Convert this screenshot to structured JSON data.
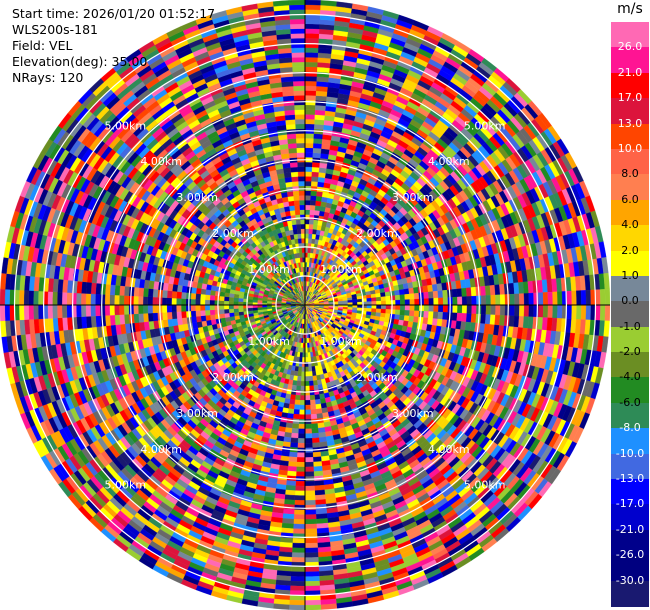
{
  "header": {
    "start_time": "Start time: 2026/01/20 01:52:17",
    "instrument": "WLS200s-181",
    "field": "Field: VEL",
    "elevation": "Elevation(deg): 35.00",
    "nrays": "NRays: 120"
  },
  "colorbar": {
    "unit": "m/s",
    "colors": [
      "#ff69b4",
      "#ff1493",
      "#ff0000",
      "#dc143c",
      "#ff4500",
      "#ff6347",
      "#ff7f50",
      "#ffa500",
      "#ffd700",
      "#ffff00",
      "#778899",
      "#696969",
      "#9acd32",
      "#6b8e23",
      "#228b22",
      "#2e8b57",
      "#1e90ff",
      "#4169e1",
      "#0000ff",
      "#0000cd",
      "#00008b",
      "#000080",
      "#191970"
    ],
    "tick_labels": [
      "26.0",
      "21.0",
      "17.0",
      "13.0",
      "10.0",
      "8.0",
      "6.0",
      "4.0",
      "2.0",
      "1.0",
      "0.0",
      "-1.0",
      "-2.0",
      "-4.0",
      "-6.0",
      "-8.0",
      "-10.0",
      "-13.0",
      "-17.0",
      "-21.0",
      "-26.0",
      "-30.0"
    ]
  },
  "chart_data": {
    "type": "heatmap",
    "projection": "polar PPI",
    "field": "VEL",
    "units": "m/s",
    "value_range": [
      -30.0,
      26.0
    ],
    "nrays": 120,
    "elevation_deg": 35.0,
    "range_rings": [
      {
        "label": "1.00km",
        "km": 1.0
      },
      {
        "label": "2.00km",
        "km": 2.0
      },
      {
        "label": "3.00km",
        "km": 3.0
      },
      {
        "label": "4.00km",
        "km": 4.0
      },
      {
        "label": "5.00km",
        "km": 5.0
      }
    ],
    "max_range_km": 6.0,
    "grid": true
  }
}
